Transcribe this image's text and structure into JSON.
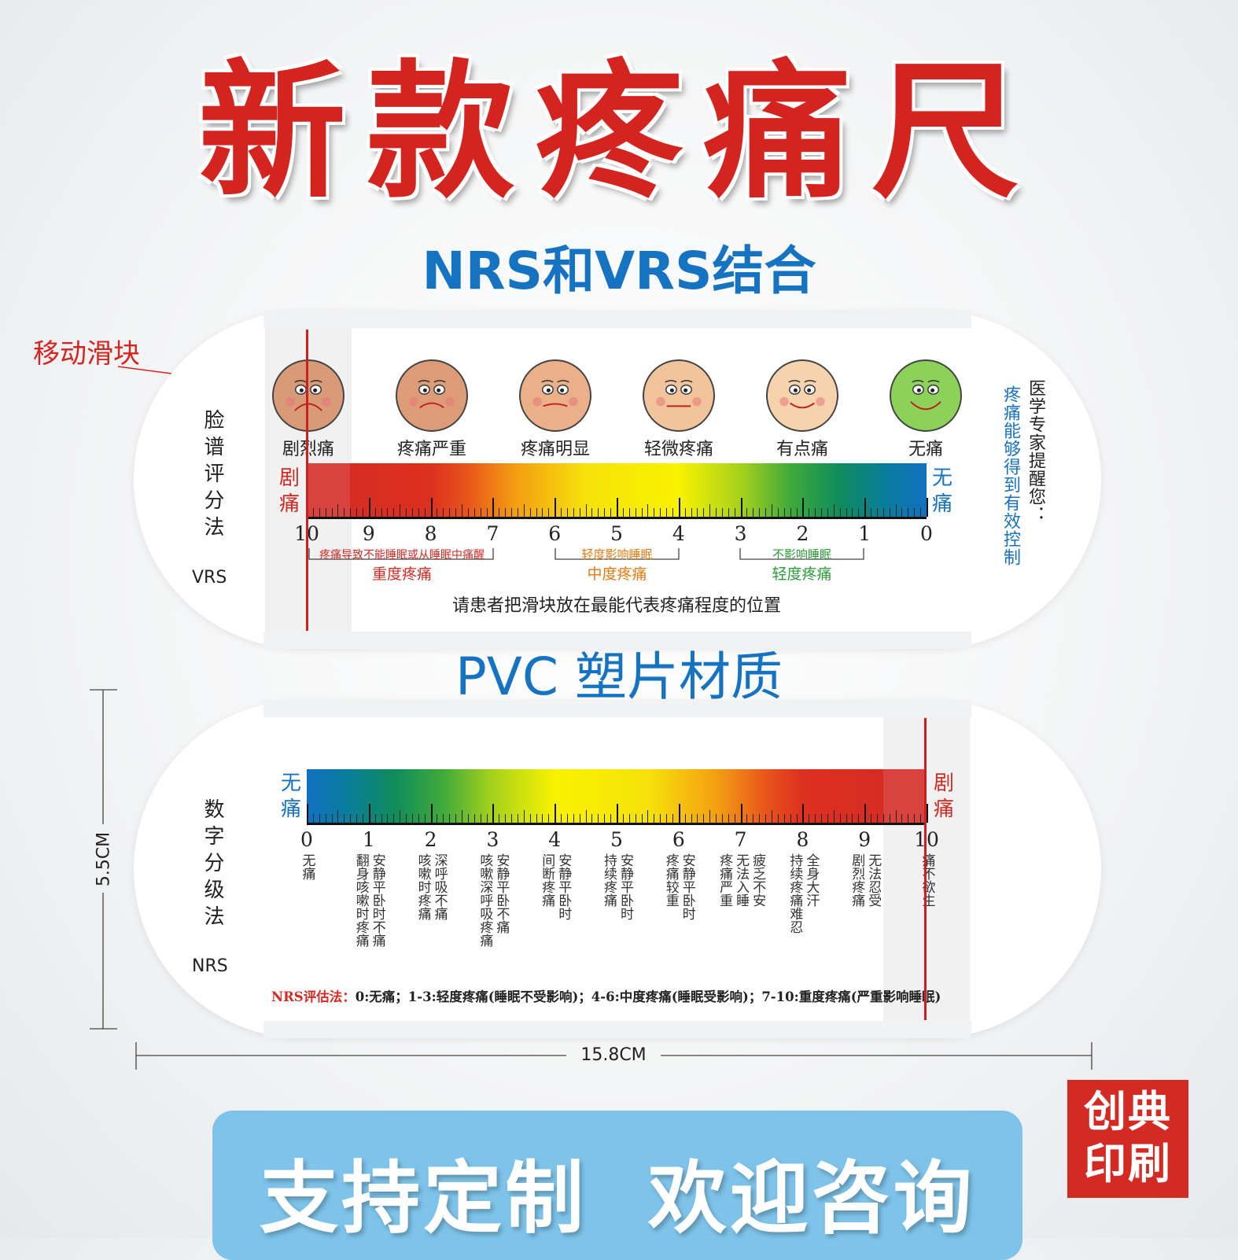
{
  "title": "新款疼痛尺",
  "subtitle_top": "NRS和VRS结合",
  "subtitle_mid": "PVC 塑片材质",
  "slider_callout": "移动滑块",
  "vrs": {
    "method_label": "脸谱评分法",
    "method_abbr": "VRS",
    "faces": [
      {
        "label": "剧烈痛",
        "color": "#d99a78"
      },
      {
        "label": "疼痛严重",
        "color": "#dd9c78"
      },
      {
        "label": "疼痛明显",
        "color": "#e9b08a"
      },
      {
        "label": "轻微疼痛",
        "color": "#f2c49c"
      },
      {
        "label": "有点痛",
        "color": "#f6d2ad"
      },
      {
        "label": "无痛",
        "color": "#8cd25a"
      }
    ],
    "left_end": "剧痛",
    "right_end": "无痛",
    "numbers": [
      "10",
      "9",
      "8",
      "7",
      "6",
      "5",
      "4",
      "3",
      "2",
      "1",
      "0"
    ],
    "band_severe_note": "疼痛导致不能睡眠或从睡眠中痛醒",
    "band_severe": "重度疼痛",
    "band_moderate_note": "轻度影响睡眠",
    "band_moderate": "中度疼痛",
    "band_mild_note": "不影响睡眠",
    "band_mild": "轻度疼痛",
    "instruction": "请患者把滑块放在最能代表疼痛程度的位置",
    "expert_tip_1": "医学专家提醒您：",
    "expert_tip_2": "疼痛能够得到有效控制",
    "colors": {
      "red": "#d42a24",
      "blue": "#1a72bd",
      "orange": "#e07a14",
      "green": "#2e9a3a"
    }
  },
  "nrs": {
    "method_label": "数字分级法",
    "method_abbr": "NRS",
    "left_end": "无痛",
    "right_end": "剧痛",
    "numbers": [
      "0",
      "1",
      "2",
      "3",
      "4",
      "5",
      "6",
      "7",
      "8",
      "9",
      "10"
    ],
    "descriptions": [
      [
        "无痛"
      ],
      [
        "安静平卧时不痛",
        "翻身咳嗽时疼痛"
      ],
      [
        "深呼吸不痛",
        "咳嗽时疼痛"
      ],
      [
        "安静平卧不痛",
        "咳嗽深呼吸疼痛"
      ],
      [
        "安静平卧时",
        "间断疼痛"
      ],
      [
        "安静平卧时",
        "持续疼痛"
      ],
      [
        "安静平卧时",
        "疼痛较重"
      ],
      [
        "疲乏不安",
        "无法入睡",
        "疼痛严重"
      ],
      [
        "全身大汗",
        "持续疼痛难忍"
      ],
      [
        "无法忍受",
        "剧烈疼痛"
      ],
      [
        "痛不欲生"
      ]
    ],
    "footnote_label": "NRS评估法：",
    "footnote_text": "0:无痛；1-3:轻度疼痛(睡眠不受影响)；4-6:中度疼痛(睡眠受影响)；7-10:重度疼痛(严重影响睡眠)"
  },
  "dimensions": {
    "height": "5.5CM",
    "width": "15.8CM"
  },
  "banner": "支持定制  欢迎咨询",
  "logo_line1": "创典",
  "logo_line2": "印刷"
}
